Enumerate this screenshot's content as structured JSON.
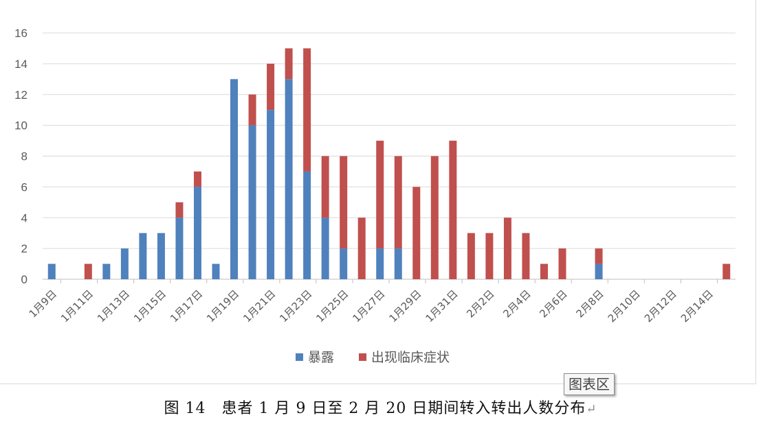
{
  "chart_data": {
    "type": "bar",
    "stacked": true,
    "categories": [
      "1月9日",
      "1月10日",
      "1月11日",
      "1月12日",
      "1月13日",
      "1月14日",
      "1月15日",
      "1月16日",
      "1月17日",
      "1月18日",
      "1月19日",
      "1月20日",
      "1月21日",
      "1月22日",
      "1月23日",
      "1月24日",
      "1月25日",
      "1月26日",
      "1月27日",
      "1月28日",
      "1月29日",
      "1月30日",
      "1月31日",
      "2月1日",
      "2月2日",
      "2月3日",
      "2月4日",
      "2月5日",
      "2月6日",
      "2月7日",
      "2月8日",
      "2月9日",
      "2月10日",
      "2月11日",
      "2月12日",
      "2月13日",
      "2月14日",
      "2月15日"
    ],
    "tick_labels": [
      "1月9日",
      "1月11日",
      "1月13日",
      "1月15日",
      "1月17日",
      "1月19日",
      "1月21日",
      "1月23日",
      "1月25日",
      "1月27日",
      "1月29日",
      "1月31日",
      "2月2日",
      "2月4日",
      "2月6日",
      "2月8日",
      "2月10日",
      "2月12日",
      "2月14日"
    ],
    "series": [
      {
        "name": "暴露",
        "color": "#4f81bd",
        "values": [
          1,
          0,
          0,
          1,
          2,
          3,
          3,
          4,
          6,
          1,
          13,
          10,
          11,
          13,
          7,
          4,
          2,
          0,
          2,
          2,
          0,
          0,
          0,
          0,
          0,
          0,
          0,
          0,
          0,
          0,
          1,
          0,
          0,
          0,
          0,
          0,
          0,
          0
        ]
      },
      {
        "name": "出现临床症状",
        "color": "#c0504d",
        "values": [
          0,
          0,
          1,
          0,
          0,
          0,
          0,
          1,
          1,
          0,
          0,
          2,
          3,
          2,
          8,
          4,
          6,
          4,
          7,
          6,
          6,
          8,
          9,
          3,
          3,
          4,
          3,
          1,
          2,
          0,
          1,
          0,
          0,
          0,
          0,
          0,
          0,
          1
        ]
      }
    ],
    "y_ticks": [
      0,
      2,
      4,
      6,
      8,
      10,
      12,
      14,
      16
    ],
    "ylim": [
      0,
      16
    ],
    "grid": true,
    "legend_position": "bottom"
  },
  "badge_label": "图表区",
  "caption": {
    "text": "图 14　患者 1 月 9 日至 2 月 20 日期间转入转出人数分布",
    "return_mark": "↵"
  },
  "colors": {
    "grid": "#d9d9d9",
    "axis": "#bfbfbf",
    "tick_text": "#595959"
  }
}
